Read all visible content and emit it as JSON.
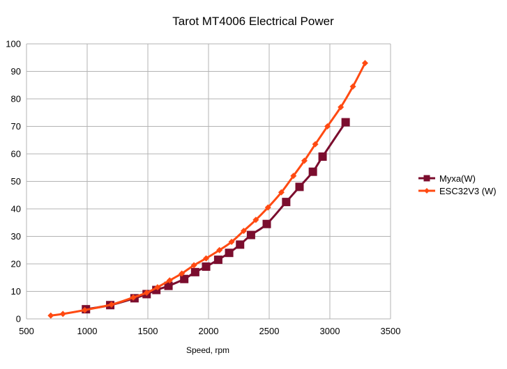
{
  "chart_data": {
    "type": "scatter",
    "title": "Tarot MT4006 Electrical Power",
    "xlabel": "Speed, rpm",
    "ylabel": "",
    "xlim": [
      500,
      3500
    ],
    "ylim": [
      0,
      100
    ],
    "xticks": [
      500,
      1000,
      1500,
      2000,
      2500,
      3000,
      3500
    ],
    "yticks": [
      0,
      10,
      20,
      30,
      40,
      50,
      60,
      70,
      80,
      90,
      100
    ],
    "grid": true,
    "legend": "right",
    "series": [
      {
        "name": "Myxa(W)",
        "color": "#7b0d2e",
        "marker": "square",
        "x": [
          990,
          1190,
          1390,
          1490,
          1570,
          1670,
          1800,
          1890,
          1980,
          2080,
          2170,
          2260,
          2350,
          2480,
          2640,
          2750,
          2860,
          2940,
          3130
        ],
        "y": [
          3.5,
          5,
          7.5,
          9,
          10.5,
          12,
          14.5,
          17,
          19,
          21.5,
          24,
          27,
          30.5,
          34.5,
          42.5,
          48,
          53.5,
          59,
          71.5
        ]
      },
      {
        "name": "ESC32V3 (W)",
        "color": "#ff4a12",
        "marker": "diamond",
        "x": [
          700,
          800,
          980,
          1200,
          1380,
          1490,
          1580,
          1680,
          1780,
          1880,
          1980,
          2090,
          2190,
          2290,
          2390,
          2490,
          2600,
          2700,
          2790,
          2880,
          2980,
          3090,
          3190,
          3290
        ],
        "y": [
          1.2,
          1.8,
          3.2,
          5.2,
          7.8,
          9.5,
          11.5,
          14,
          16.5,
          19.5,
          22,
          25,
          28,
          32,
          36,
          40.5,
          46,
          52,
          57.5,
          63.5,
          70,
          77,
          84.5,
          93
        ]
      }
    ]
  }
}
